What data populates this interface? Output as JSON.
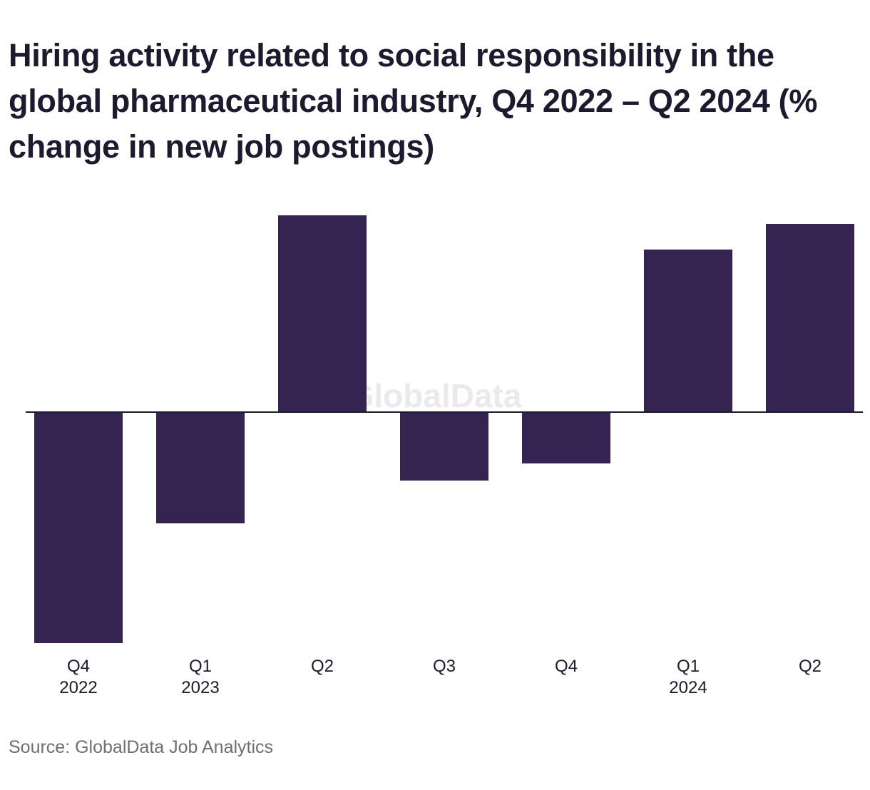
{
  "chart_data": {
    "type": "bar",
    "title": "Hiring activity related to social responsibility in the global pharmaceutical industry, Q4 2022 – Q2 2024 (% change in new job postings)",
    "categories": [
      {
        "quarter": "Q4",
        "year": "2022"
      },
      {
        "quarter": "Q1",
        "year": "2023"
      },
      {
        "quarter": "Q2",
        "year": ""
      },
      {
        "quarter": "Q3",
        "year": ""
      },
      {
        "quarter": "Q4",
        "year": ""
      },
      {
        "quarter": "Q1",
        "year": "2024"
      },
      {
        "quarter": "Q2",
        "year": ""
      }
    ],
    "values": [
      -27.0,
      -13.0,
      23.0,
      -8.0,
      -6.0,
      19.0,
      22.0
    ],
    "ylim": [
      -27.0,
      23.0
    ],
    "xlabel": "",
    "ylabel": "",
    "grid": false,
    "bar_color": "#352452",
    "axis_color": "#1b1a2e",
    "watermark": "GlobalData"
  },
  "source": "Source: GlobalData Job Analytics"
}
